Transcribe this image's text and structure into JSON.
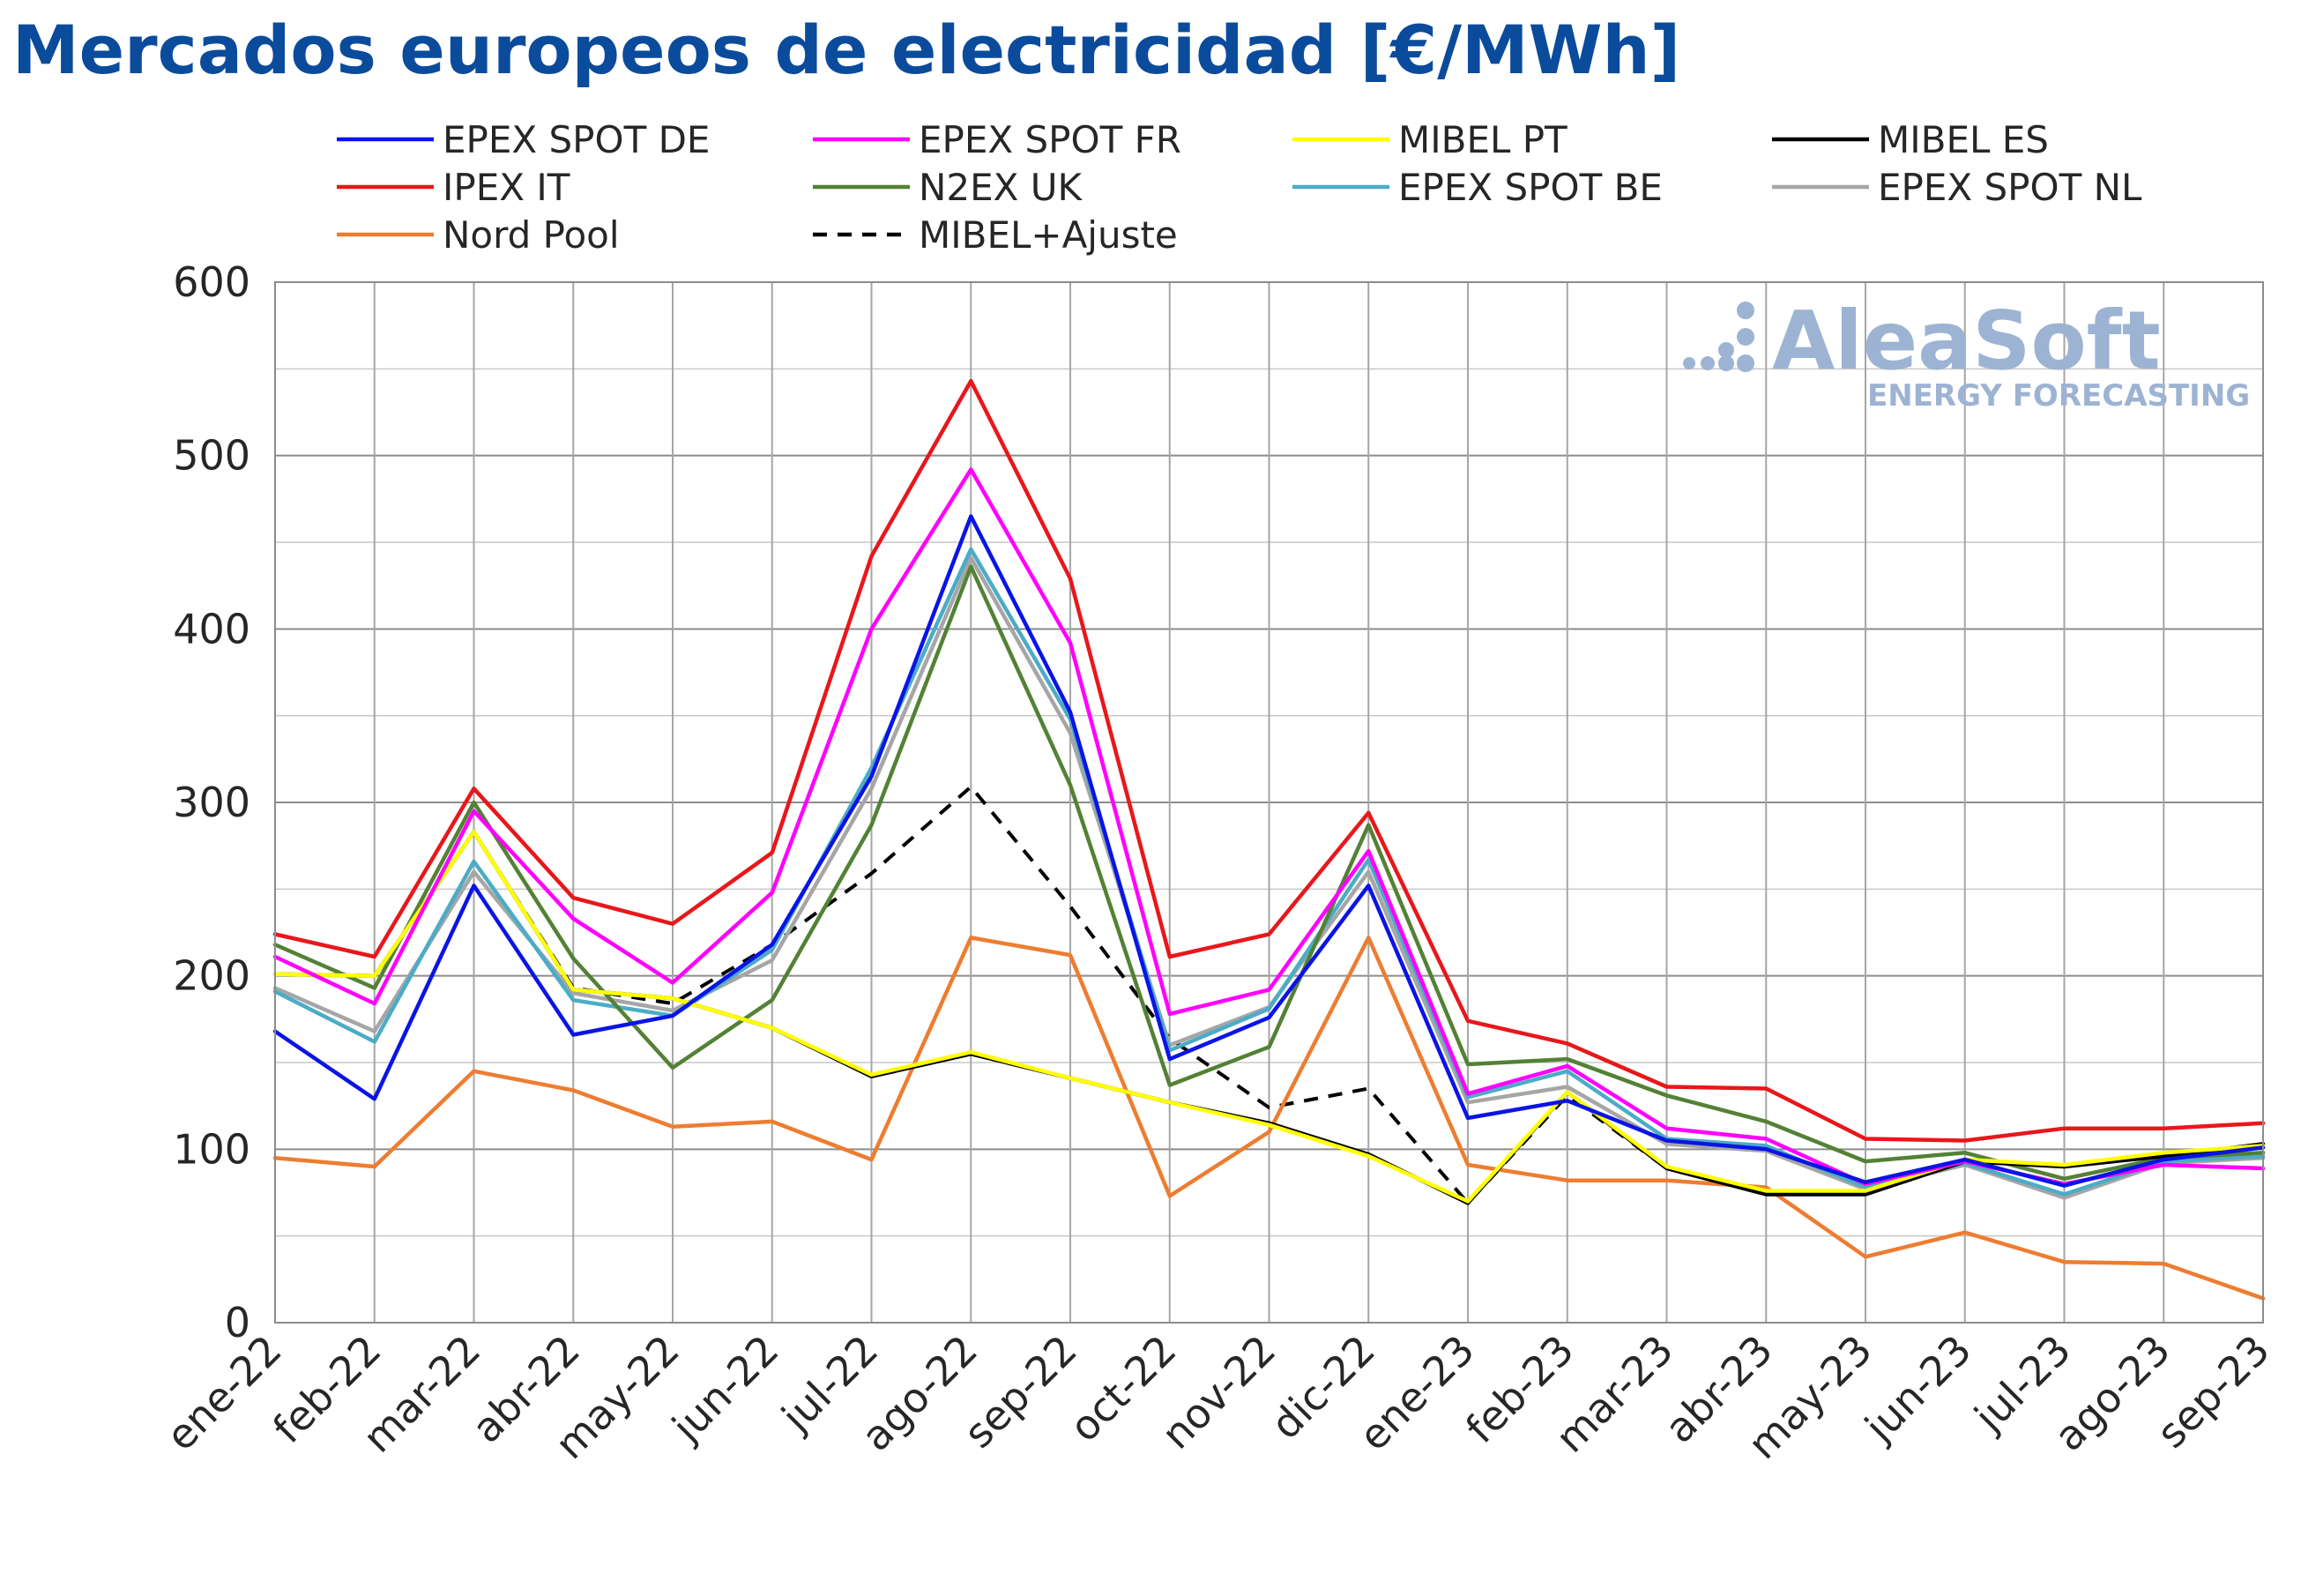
{
  "title": "Mercados europeos de electricidad [€/MWh]",
  "logo": {
    "brand": "AleaSoft",
    "tagline": "ENERGY FORECASTING",
    "color": "#9db3d3",
    "icon": "dots-logo-icon"
  },
  "chart_data": {
    "type": "line",
    "title": "Mercados europeos de electricidad [€/MWh]",
    "xlabel": "",
    "ylabel": "",
    "ylim": [
      0,
      600
    ],
    "yticks": [
      0,
      100,
      200,
      300,
      400,
      500,
      600
    ],
    "grid": true,
    "legend_position": "top",
    "categories": [
      "ene-22",
      "feb-22",
      "mar-22",
      "abr-22",
      "may-22",
      "jun-22",
      "jul-22",
      "ago-22",
      "sep-22",
      "oct-22",
      "nov-22",
      "dic-22",
      "ene-23",
      "feb-23",
      "mar-23",
      "abr-23",
      "may-23",
      "jun-23",
      "jul-23",
      "ago-23",
      "sep-23"
    ],
    "series": [
      {
        "name": "EPEX SPOT DE",
        "color": "#0a14e6",
        "dashed": false,
        "values": [
          168,
          129,
          252,
          166,
          177,
          218,
          315,
          465,
          352,
          152,
          176,
          252,
          118,
          128,
          105,
          100,
          81,
          94,
          79,
          94,
          101
        ]
      },
      {
        "name": "EPEX SPOT FR",
        "color": "#ff00ff",
        "dashed": false,
        "values": [
          211,
          184,
          295,
          233,
          196,
          248,
          400,
          492,
          392,
          178,
          192,
          272,
          132,
          148,
          112,
          106,
          80,
          93,
          80,
          91,
          89
        ]
      },
      {
        "name": "MIBEL PT",
        "color": "#ffff00",
        "dashed": false,
        "values": [
          201,
          200,
          283,
          192,
          187,
          170,
          143,
          156,
          141,
          127,
          114,
          96,
          70,
          133,
          90,
          76,
          76,
          94,
          91,
          98,
          102
        ]
      },
      {
        "name": "MIBEL ES",
        "color": "#000000",
        "dashed": false,
        "values": [
          201,
          200,
          283,
          192,
          187,
          170,
          142,
          155,
          141,
          127,
          115,
          97,
          69,
          133,
          89,
          74,
          74,
          93,
          90,
          96,
          103
        ]
      },
      {
        "name": "IPEX IT",
        "color": "#e8171b",
        "dashed": false,
        "values": [
          224,
          211,
          308,
          245,
          230,
          271,
          442,
          543,
          429,
          211,
          224,
          294,
          174,
          161,
          136,
          135,
          106,
          105,
          112,
          112,
          115
        ]
      },
      {
        "name": "N2EX UK",
        "color": "#538135",
        "dashed": false,
        "values": [
          218,
          193,
          300,
          210,
          147,
          186,
          287,
          436,
          310,
          137,
          159,
          287,
          149,
          152,
          131,
          116,
          93,
          98,
          83,
          95,
          98
        ]
      },
      {
        "name": "EPEX SPOT BE",
        "color": "#4bacc6",
        "dashed": false,
        "values": [
          191,
          162,
          266,
          186,
          177,
          215,
          320,
          446,
          348,
          157,
          181,
          267,
          130,
          145,
          106,
          102,
          78,
          92,
          74,
          93,
          96
        ]
      },
      {
        "name": "EPEX SPOT NL",
        "color": "#a6a6a6",
        "dashed": false,
        "values": [
          193,
          168,
          260,
          190,
          180,
          209,
          308,
          441,
          340,
          160,
          182,
          260,
          127,
          136,
          103,
          99,
          77,
          91,
          72,
          92,
          95
        ]
      },
      {
        "name": "Nord Pool",
        "color": "#ed7d31",
        "dashed": false,
        "values": [
          95,
          90,
          145,
          134,
          113,
          116,
          94,
          222,
          212,
          73,
          110,
          222,
          91,
          82,
          82,
          78,
          38,
          52,
          35,
          34,
          14
        ]
      },
      {
        "name": "MIBEL+Ajuste",
        "color": "#000000",
        "dashed": true,
        "values": [
          201,
          200,
          283,
          193,
          184,
          218,
          259,
          309,
          240,
          164,
          124,
          135,
          69,
          131,
          89,
          74,
          74,
          93,
          90,
          96,
          103
        ]
      }
    ]
  }
}
